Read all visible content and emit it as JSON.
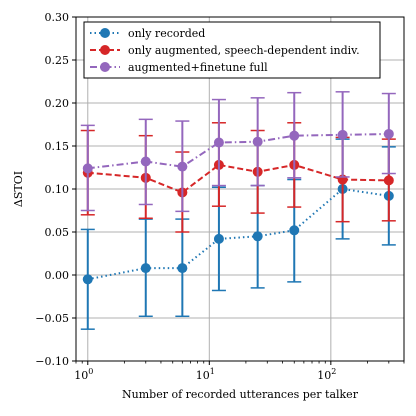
{
  "chart_data": {
    "type": "line",
    "xscale": "log",
    "xlim": [
      0.8,
      400
    ],
    "ylim": [
      -0.1,
      0.3
    ],
    "xlabel": "Number of recorded utterances per talker",
    "ylabel": "ΔSTOI",
    "grid": true,
    "legend_position": "top-left",
    "x": [
      1,
      3,
      6,
      12,
      25,
      50,
      125,
      300
    ],
    "yticks": [
      -0.1,
      -0.05,
      0.0,
      0.05,
      0.1,
      0.15,
      0.2,
      0.25,
      0.3
    ],
    "ytick_labels": [
      "−0.10",
      "−0.05",
      "0.00",
      "0.05",
      "0.10",
      "0.15",
      "0.20",
      "0.25",
      "0.30"
    ],
    "xticks": [
      1,
      10,
      100
    ],
    "xtick_labels": [
      {
        "base": "10",
        "exp": "0"
      },
      {
        "base": "10",
        "exp": "1"
      },
      {
        "base": "10",
        "exp": "2"
      }
    ],
    "series": [
      {
        "name": "only recorded",
        "color": "#1f77b4",
        "linestyle": "dotted",
        "values": [
          -0.005,
          0.008,
          0.008,
          0.042,
          0.045,
          0.052,
          0.1,
          0.092
        ],
        "err_low": [
          -0.063,
          -0.048,
          -0.048,
          -0.018,
          -0.015,
          -0.008,
          0.042,
          0.035
        ],
        "err_high": [
          0.053,
          0.065,
          0.065,
          0.102,
          0.104,
          0.111,
          0.158,
          0.149
        ]
      },
      {
        "name": "only augmented, speech-dependent indiv.",
        "color": "#d62728",
        "linestyle": "dashed",
        "values": [
          0.119,
          0.113,
          0.096,
          0.128,
          0.12,
          0.128,
          0.111,
          0.11
        ],
        "err_low": [
          0.07,
          0.066,
          0.05,
          0.08,
          0.072,
          0.079,
          0.062,
          0.063
        ],
        "err_high": [
          0.168,
          0.162,
          0.143,
          0.177,
          0.168,
          0.177,
          0.16,
          0.158
        ]
      },
      {
        "name": "augmented+finetune full",
        "color": "#9467bd",
        "linestyle": "dashdot",
        "values": [
          0.124,
          0.132,
          0.126,
          0.154,
          0.155,
          0.162,
          0.163,
          0.164
        ],
        "err_low": [
          0.075,
          0.082,
          0.074,
          0.104,
          0.104,
          0.113,
          0.114,
          0.118
        ],
        "err_high": [
          0.174,
          0.181,
          0.179,
          0.204,
          0.206,
          0.212,
          0.213,
          0.211
        ]
      }
    ]
  }
}
